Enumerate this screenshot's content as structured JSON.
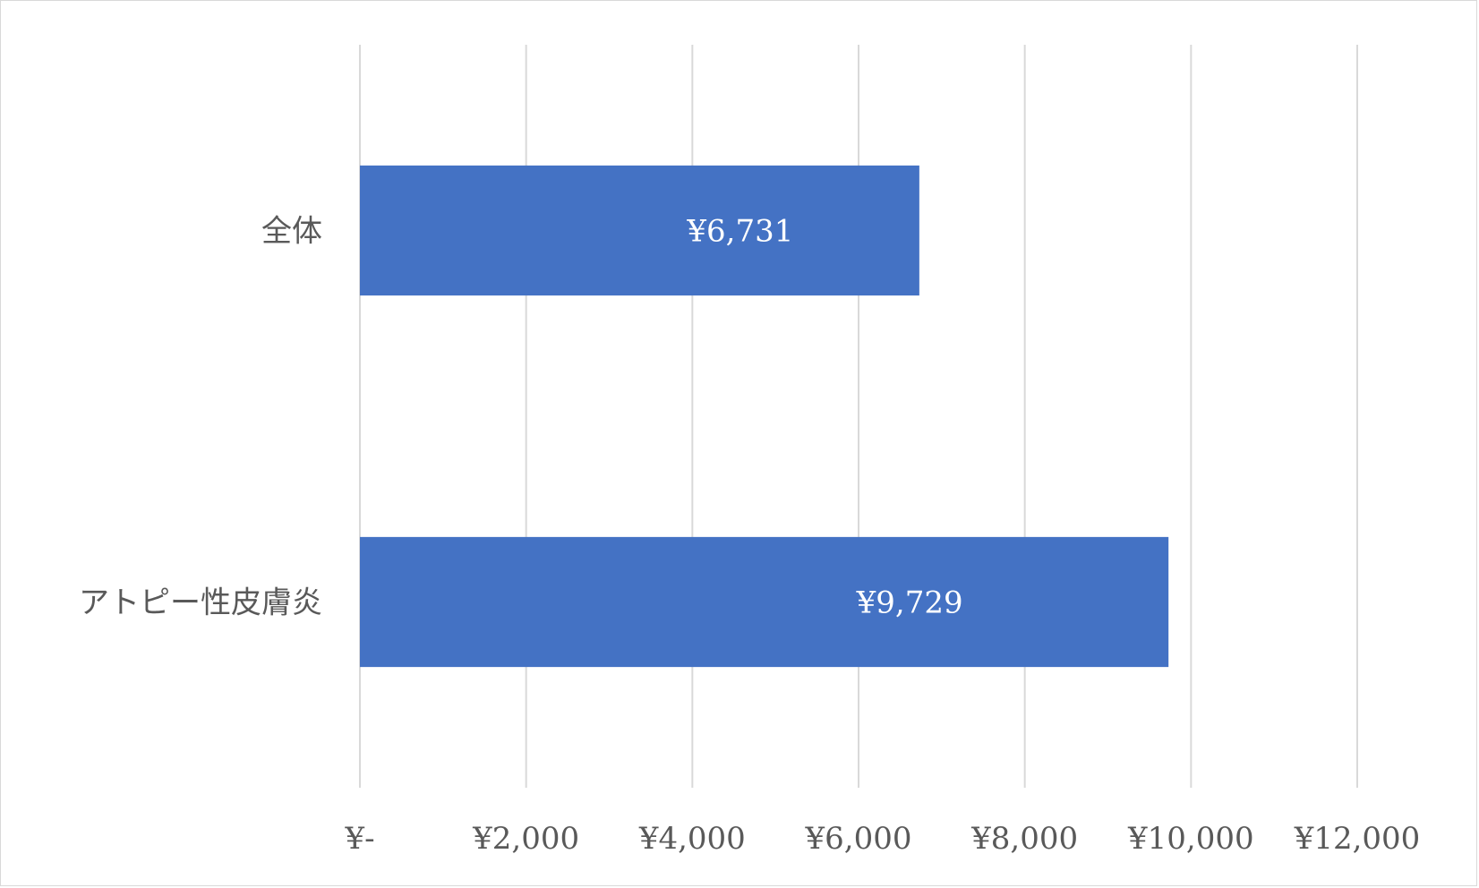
{
  "chart_data": {
    "type": "bar",
    "orientation": "horizontal",
    "categories": [
      "全体",
      "アトピー性皮膚炎"
    ],
    "values": [
      6731,
      9729
    ],
    "data_labels": [
      "¥6,731",
      "¥9,729"
    ],
    "xlim": [
      0,
      12000
    ],
    "x_ticks": [
      0,
      2000,
      4000,
      6000,
      8000,
      10000,
      12000
    ],
    "x_tick_labels": [
      "¥-",
      "¥2,000",
      "¥4,000",
      "¥6,000",
      "¥8,000",
      "¥10,000",
      "¥12,000"
    ],
    "title": "",
    "xlabel": "",
    "ylabel": "",
    "grid": "vertical",
    "legend": "none",
    "bar_color": "#4472C4",
    "grid_color": "#d9d9d9"
  }
}
